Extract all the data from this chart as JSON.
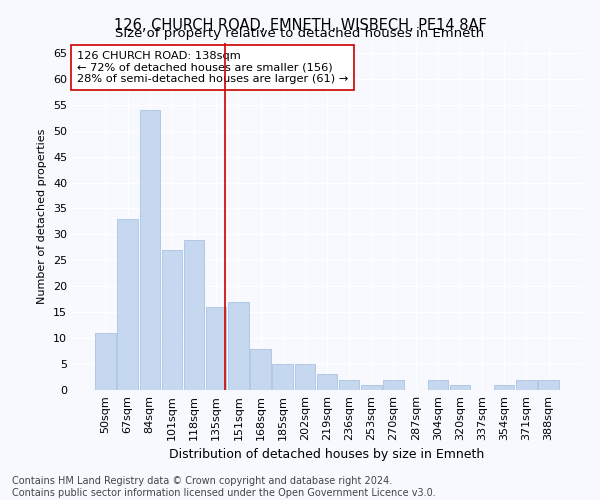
{
  "title": "126, CHURCH ROAD, EMNETH, WISBECH, PE14 8AF",
  "subtitle": "Size of property relative to detached houses in Emneth",
  "xlabel": "Distribution of detached houses by size in Emneth",
  "ylabel": "Number of detached properties",
  "categories": [
    "50sqm",
    "67sqm",
    "84sqm",
    "101sqm",
    "118sqm",
    "135sqm",
    "151sqm",
    "168sqm",
    "185sqm",
    "202sqm",
    "219sqm",
    "236sqm",
    "253sqm",
    "270sqm",
    "287sqm",
    "304sqm",
    "320sqm",
    "337sqm",
    "354sqm",
    "371sqm",
    "388sqm"
  ],
  "values": [
    11,
    33,
    54,
    27,
    29,
    16,
    17,
    8,
    5,
    5,
    3,
    2,
    1,
    2,
    0,
    2,
    1,
    0,
    1,
    2,
    2
  ],
  "bar_color": "#c5d8f0",
  "bar_edge_color": "#a0bcdc",
  "vline_color": "#cc0000",
  "vline_x": 5.42,
  "annotation_line1": "126 CHURCH ROAD: 138sqm",
  "annotation_line2": "← 72% of detached houses are smaller (156)",
  "annotation_line3": "28% of semi-detached houses are larger (61) →",
  "annotation_box_color": "#ffffff",
  "annotation_box_edge": "#cc0000",
  "ylim": [
    0,
    67
  ],
  "yticks": [
    0,
    5,
    10,
    15,
    20,
    25,
    30,
    35,
    40,
    45,
    50,
    55,
    60,
    65
  ],
  "footer_line1": "Contains HM Land Registry data © Crown copyright and database right 2024.",
  "footer_line2": "Contains public sector information licensed under the Open Government Licence v3.0.",
  "bg_color": "#f7f9ff",
  "plot_bg_color": "#f7f9ff",
  "title_fontsize": 10.5,
  "subtitle_fontsize": 9.5,
  "xlabel_fontsize": 9,
  "ylabel_fontsize": 8,
  "tick_fontsize": 8,
  "footer_fontsize": 7
}
